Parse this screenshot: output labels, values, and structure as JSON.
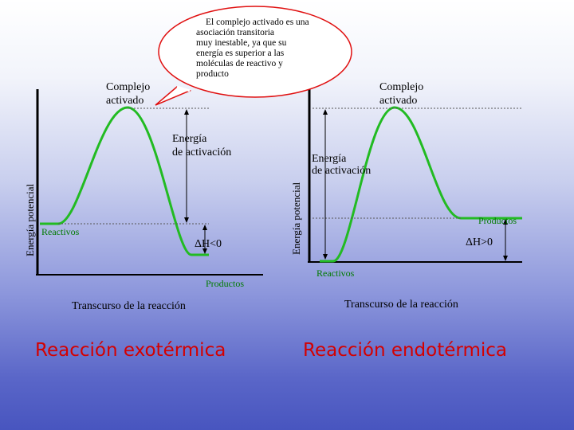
{
  "bubble": {
    "lines": [
      "El complejo activado es una",
      "asociación transitoria",
      "muy inestable, ya que su",
      "energía es superior a las",
      "moléculas de reactivo y",
      "producto"
    ]
  },
  "left": {
    "ylabel": "Energía potencial",
    "complex_line1": "Complejo",
    "complex_line2": "activado",
    "ea_line1": "Energía",
    "ea_line2": "de activación",
    "reactants": "Reactivos",
    "dh": "ΔH<0",
    "products": "Productos",
    "xlabel": "Transcurso de la reacción",
    "title": "Reacción exotérmica"
  },
  "right": {
    "ylabel": "Energía potencial",
    "complex_line1": "Complejo",
    "complex_line2": "activado",
    "ea_line1": "Energía",
    "ea_line2": "de activación",
    "products": "Productos",
    "dh": "ΔH>0",
    "reactants": "Reactivos",
    "xlabel": "Transcurso de la reacción",
    "title": "Reacción endotérmica"
  },
  "colors": {
    "curve": "#22bb22",
    "bubble_border": "#e01010",
    "title": "#d40000",
    "label_green": "#007a00"
  }
}
